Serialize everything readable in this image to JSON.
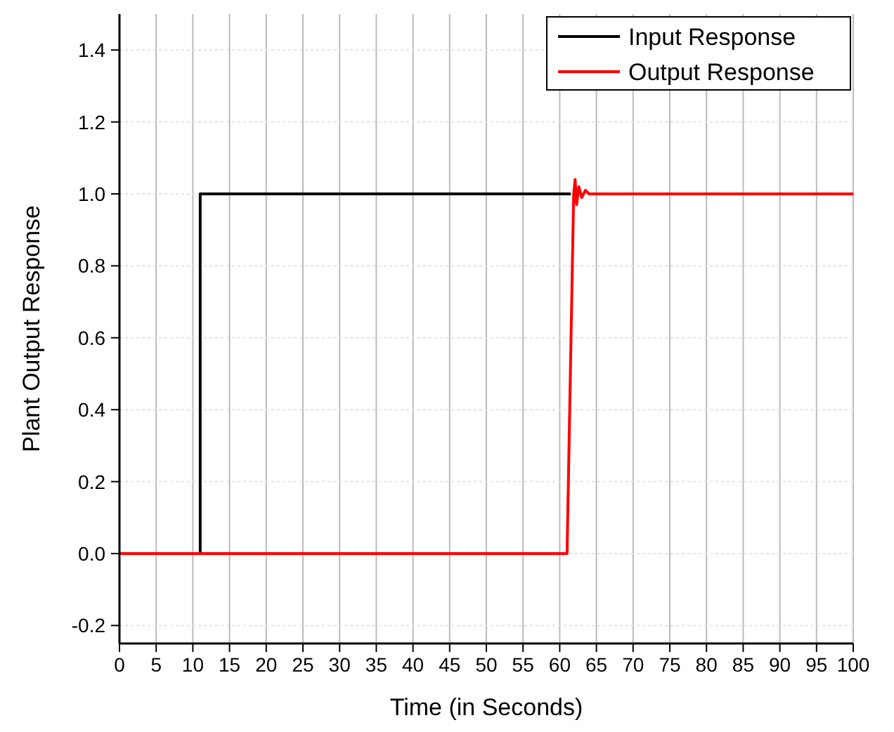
{
  "chart_data": {
    "type": "line",
    "xlabel": "Time (in Seconds)",
    "ylabel": "Plant Output Response",
    "xlim": [
      0,
      100
    ],
    "xticks": [
      0,
      5,
      10,
      15,
      20,
      25,
      30,
      35,
      40,
      45,
      50,
      55,
      60,
      65,
      70,
      75,
      80,
      85,
      90,
      95,
      100
    ],
    "ylim": [
      -0.25,
      1.5
    ],
    "yticks": [
      {
        "value": -0.2,
        "label": "-0.2"
      },
      {
        "value": 0,
        "label": "0.0"
      },
      {
        "value": 0.2,
        "label": "0.2"
      },
      {
        "value": 0.4,
        "label": "0.4"
      },
      {
        "value": 0.6,
        "label": "0.6"
      },
      {
        "value": 0.8,
        "label": "0.8"
      },
      {
        "value": 1,
        "label": "1.0"
      },
      {
        "value": 1.2,
        "label": "1.2"
      },
      {
        "value": 1.4,
        "label": "1.4"
      }
    ],
    "grid": true,
    "legend": "top right",
    "line_style": "solid",
    "series": [
      {
        "name": "Input Response",
        "color": "#000000",
        "x": [
          0,
          11,
          11,
          61.5
        ],
        "values": [
          0,
          0,
          1,
          1
        ]
      },
      {
        "name": "Output Response",
        "color": "#ff0000",
        "x": [
          0,
          61,
          61.9,
          62.1,
          62.3,
          62.6,
          63,
          63.5,
          64,
          100
        ],
        "values": [
          0,
          0,
          1,
          1.04,
          0.97,
          1.02,
          0.99,
          1.01,
          1,
          1
        ]
      }
    ]
  }
}
